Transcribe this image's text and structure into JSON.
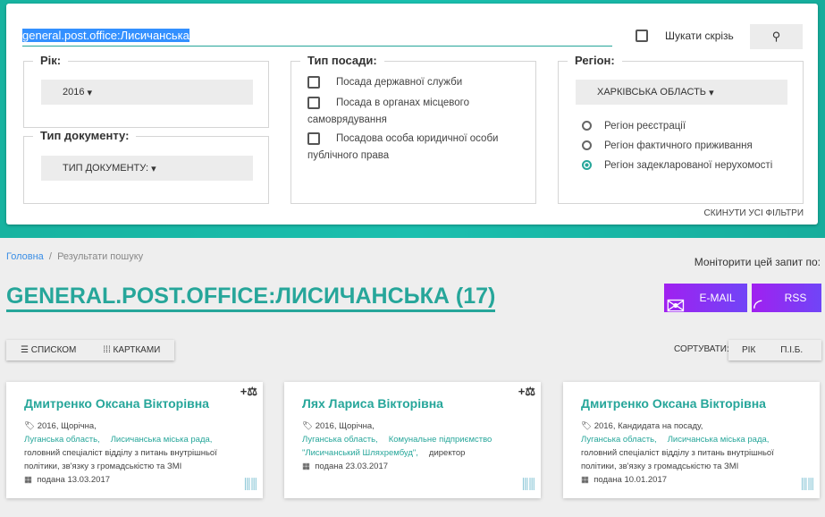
{
  "search": {
    "value": "general.post.office:Лисичанська",
    "search_everywhere": "Шукати скрізь",
    "search_icon": "search-icon",
    "reset": "СКИНУТИ УСІ ФІЛЬТРИ"
  },
  "year": {
    "legend": "Рік:",
    "value": "2016"
  },
  "doc_type": {
    "legend": "Тип документу:",
    "value": "ТИП ДОКУМЕНТУ:"
  },
  "position": {
    "legend": "Тип посади:",
    "options": [
      "Посада державної служби",
      "Посада в органах місцевого",
      "самоврядування",
      "Посадова особа юридичної особи",
      "публічного права"
    ]
  },
  "region": {
    "legend": "Регіон:",
    "value": "ХАРКІВСЬКА ОБЛАСТЬ",
    "options": [
      {
        "label": "Регіон реєстрації",
        "checked": false
      },
      {
        "label": "Регіон фактичного приживання",
        "checked": false
      },
      {
        "label": "Регіон задекларованої нерухомості",
        "checked": true
      }
    ]
  },
  "breadcrumb": {
    "home": "Головна",
    "current": "Результати пошуку"
  },
  "monitor": {
    "label": "Моніторити цей запит по:",
    "email": "E-MAIL",
    "rss": "RSS"
  },
  "title": "GENERAL.POST.OFFICE:ЛИСИЧАНСЬКА (17)",
  "view": {
    "list": "СПИСКОМ",
    "cards": "КАРТКАМИ"
  },
  "sort": {
    "label": "СОРТУВАТИ:",
    "year": "РІК",
    "name": "П.І.Б."
  },
  "colors": {
    "accent": "#26a69a",
    "purple": "#a020f0"
  },
  "cards": [
    {
      "name": "Дмитренко Оксана Вікторівна",
      "meta": "2016, Щорічна,",
      "region": "Луганська область,",
      "org": "Лисичанська міська рада,",
      "pos": "головний спеціаліст відділу з питань внутрішньої політики, зв'язку з громадськістю та ЗМІ",
      "date": "подана 13.03.2017"
    },
    {
      "name": "Лях Лариса Вікторівна",
      "meta": "2016, Щорічна,",
      "region": "Луганська область,",
      "org": "Комунальне підприємство \"Лисичанський Шляхрембуд\",",
      "pos": "директор",
      "date": "подана 23.03.2017"
    },
    {
      "name": "Дмитренко Оксана Вікторівна",
      "meta": "2016, Кандидата на посаду,",
      "region": "Луганська область,",
      "org": "Лисичанська міська рада,",
      "pos": "головний спеціаліст відділу з питань внутрішньої політики, зв'язку з громадськістю та ЗМІ",
      "date": "подана 10.01.2017"
    }
  ]
}
